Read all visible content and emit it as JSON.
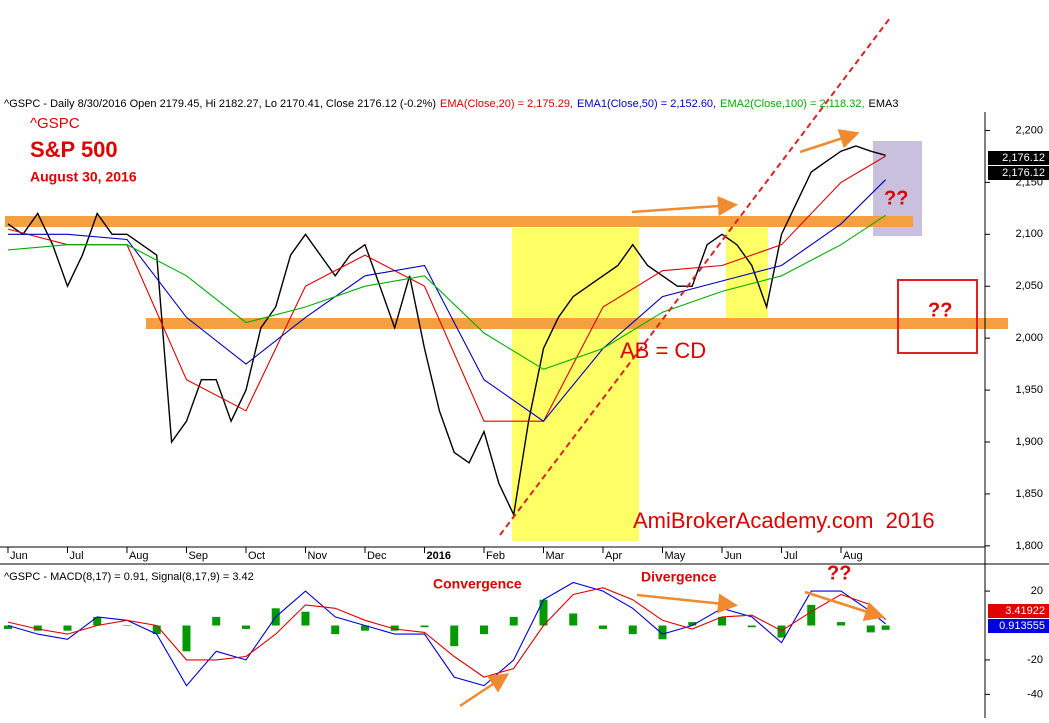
{
  "chart_data": [
    {
      "type": "line",
      "header_segments": [
        {
          "text": "^GSPC - Daily 8/30/2016 Open 2179.45, Hi 2182.27, Lo 2170.41, Close 2176.12 (-0.2%)",
          "color": "#000000"
        },
        {
          "text": "EMA(Close,20) = 2,175.29,",
          "color": "#e00000"
        },
        {
          "text": "EMA1(Close,50) = 2,152.60,",
          "color": "#0000c0"
        },
        {
          "text": "EMA2(Close,100) = 2,118.32,",
          "color": "#00b000"
        },
        {
          "text": "EMA3",
          "color": "#000000"
        }
      ],
      "annotations": [
        "^GSPC",
        "S&P 500",
        "August 30, 2016",
        "??",
        "??",
        "AB = CD",
        "AmiBrokerAcademy.com  2016"
      ],
      "last_labels": [
        "2,176.12",
        "2,176.12"
      ],
      "xlim": [
        -0.05,
        16.42
      ],
      "xticks": [
        {
          "value": 0,
          "label": "Jun"
        },
        {
          "value": 1,
          "label": "Jul"
        },
        {
          "value": 2,
          "label": "Aug"
        },
        {
          "value": 3,
          "label": "Sep"
        },
        {
          "value": 4,
          "label": "Oct"
        },
        {
          "value": 5,
          "label": "Nov"
        },
        {
          "value": 6,
          "label": "Dec"
        },
        {
          "value": 7,
          "label": "2016"
        },
        {
          "value": 8,
          "label": "Feb"
        },
        {
          "value": 9,
          "label": "Mar"
        },
        {
          "value": 10,
          "label": "Apr"
        },
        {
          "value": 11,
          "label": "May"
        },
        {
          "value": 12,
          "label": "Jun"
        },
        {
          "value": 13,
          "label": "Jul"
        },
        {
          "value": 14,
          "label": "Aug"
        }
      ],
      "ylim": [
        1796,
        2212
      ],
      "yticks": [
        {
          "value": 1800,
          "label": "1,800"
        },
        {
          "value": 1850,
          "label": "1,850"
        },
        {
          "value": 1900,
          "label": "1,900"
        },
        {
          "value": 1950,
          "label": "1,950"
        },
        {
          "value": 2000,
          "label": "2,000"
        },
        {
          "value": 2050,
          "label": "2,050"
        },
        {
          "value": 2100,
          "label": "2,100"
        },
        {
          "value": 2150,
          "label": "2,150"
        },
        {
          "value": 2200,
          "label": "2,200"
        }
      ],
      "series": [
        {
          "name": "Close",
          "color": "#000000",
          "x": [
            0,
            0.25,
            0.5,
            0.75,
            1,
            1.25,
            1.5,
            1.75,
            2,
            2.25,
            2.5,
            2.75,
            3,
            3.25,
            3.5,
            3.75,
            4,
            4.25,
            4.5,
            4.75,
            5,
            5.25,
            5.5,
            5.75,
            6,
            6.25,
            6.5,
            6.75,
            7,
            7.25,
            7.5,
            7.75,
            8,
            8.25,
            8.5,
            8.75,
            9,
            9.25,
            9.5,
            9.75,
            10,
            10.25,
            10.5,
            10.75,
            11,
            11.25,
            11.5,
            11.75,
            12,
            12.25,
            12.5,
            12.75,
            13,
            13.25,
            13.5,
            13.75,
            14,
            14.25,
            14.5,
            14.75
          ],
          "values": [
            2110,
            2100,
            2120,
            2090,
            2050,
            2080,
            2120,
            2100,
            2100,
            2090,
            2080,
            1900,
            1920,
            1960,
            1960,
            1920,
            1950,
            2010,
            2030,
            2080,
            2100,
            2080,
            2060,
            2080,
            2090,
            2050,
            2010,
            2060,
            1990,
            1930,
            1890,
            1880,
            1910,
            1860,
            1830,
            1920,
            1990,
            2020,
            2040,
            2050,
            2060,
            2070,
            2090,
            2070,
            2060,
            2050,
            2050,
            2090,
            2100,
            2090,
            2070,
            2030,
            2100,
            2130,
            2160,
            2170,
            2180,
            2185,
            2180,
            2176.12
          ]
        },
        {
          "name": "EMA(Close,20)",
          "color": "#e00000",
          "x": [
            0,
            1,
            2,
            3,
            4,
            5,
            6,
            7,
            8,
            9,
            10,
            11,
            12,
            13,
            14,
            14.75
          ],
          "values": [
            2105,
            2090,
            2090,
            1960,
            1930,
            2050,
            2080,
            2050,
            1920,
            1920,
            2030,
            2065,
            2070,
            2090,
            2150,
            2175.29
          ]
        },
        {
          "name": "EMA1(Close,50)",
          "color": "#0000c0",
          "x": [
            0,
            1,
            2,
            3,
            4,
            5,
            6,
            7,
            8,
            9,
            10,
            11,
            12,
            13,
            14,
            14.75
          ],
          "values": [
            2100,
            2100,
            2095,
            2020,
            1975,
            2020,
            2060,
            2070,
            1960,
            1920,
            1990,
            2040,
            2055,
            2070,
            2110,
            2152.6
          ]
        },
        {
          "name": "EMA2(Close,100)",
          "color": "#00b000",
          "x": [
            0,
            1,
            2,
            3,
            4,
            5,
            6,
            7,
            8,
            9,
            10,
            11,
            12,
            13,
            14,
            14.75
          ],
          "values": [
            2085,
            2090,
            2090,
            2060,
            2015,
            2030,
            2050,
            2060,
            2005,
            1970,
            1990,
            2025,
            2045,
            2060,
            2090,
            2118.32
          ]
        }
      ]
    },
    {
      "type": "line",
      "title": "^GSPC - MACD(8,17) = 0.91, Signal(8,17,9) = 3.42",
      "annotations": [
        "Convergence",
        "Divergence",
        "??"
      ],
      "last_labels": [
        "3.41922",
        "0.913555"
      ],
      "last_colors": [
        "#e00000",
        "#0000e0"
      ],
      "xlim": [
        -0.05,
        16.42
      ],
      "ylim": [
        -52,
        34
      ],
      "yticks": [
        20,
        -20,
        -40
      ],
      "series": [
        {
          "name": "Histogram",
          "color": "#009900",
          "type": "bar",
          "x": [
            0,
            0.5,
            1,
            1.5,
            2,
            2.5,
            3,
            3.5,
            4,
            4.5,
            5,
            5.5,
            6,
            6.5,
            7,
            7.5,
            8,
            8.5,
            9,
            9.5,
            10,
            10.5,
            11,
            11.5,
            12,
            12.5,
            13,
            13.5,
            14,
            14.5,
            14.75
          ],
          "values": [
            -2,
            -3,
            -3,
            5,
            0,
            -5,
            -15,
            5,
            -2,
            10,
            8,
            -5,
            -3,
            -3,
            -1,
            -12,
            -5,
            5,
            15,
            7,
            -2,
            -5,
            -8,
            2,
            5,
            -1,
            -7,
            12,
            2,
            -4,
            -2.51
          ]
        },
        {
          "name": "MACD",
          "color": "#0000e0",
          "x": [
            0,
            0.5,
            1,
            1.5,
            2,
            2.5,
            3,
            3.5,
            4,
            4.5,
            5,
            5.5,
            6,
            6.5,
            7,
            7.5,
            8,
            8.5,
            9,
            9.5,
            10,
            10.5,
            11,
            11.5,
            12,
            12.5,
            13,
            13.5,
            14,
            14.5,
            14.75
          ],
          "values": [
            0,
            -5,
            -8,
            5,
            3,
            -5,
            -35,
            -15,
            -20,
            5,
            20,
            5,
            0,
            -5,
            -5,
            -30,
            -35,
            -20,
            15,
            25,
            20,
            10,
            -5,
            0,
            10,
            5,
            -10,
            20,
            20,
            8,
            0.91
          ]
        },
        {
          "name": "Signal",
          "color": "#e00000",
          "x": [
            0,
            0.5,
            1,
            1.5,
            2,
            2.5,
            3,
            3.5,
            4,
            4.5,
            5,
            5.5,
            6,
            6.5,
            7,
            7.5,
            8,
            8.5,
            9,
            9.5,
            10,
            10.5,
            11,
            11.5,
            12,
            12.5,
            13,
            13.5,
            14,
            14.5,
            14.75
          ],
          "values": [
            2,
            -2,
            -5,
            0,
            3,
            0,
            -20,
            -20,
            -18,
            -5,
            12,
            10,
            3,
            -2,
            -4,
            -18,
            -30,
            -25,
            0,
            18,
            22,
            15,
            3,
            -2,
            5,
            6,
            -3,
            8,
            18,
            12,
            3.42
          ]
        }
      ]
    }
  ]
}
